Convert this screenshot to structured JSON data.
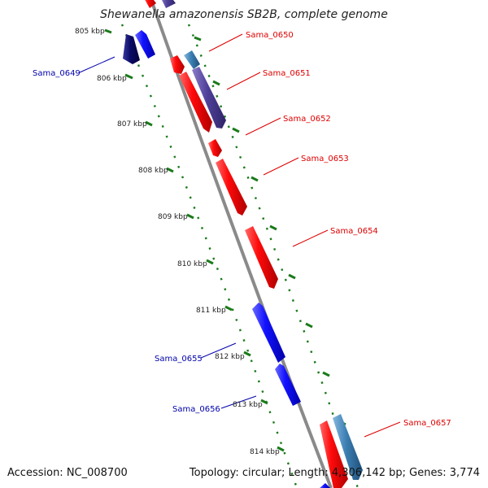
{
  "title": "Shewanella amazonensis SB2B, complete genome",
  "footer": {
    "accession": "Accession: NC_008700",
    "summary": "Topology: circular; Length: 4,306,142 bp; Genes: 3,774"
  },
  "colors": {
    "backbone": "#8a8a8a",
    "tick": "#1a7a1a",
    "forward_label": "#dd0000",
    "reverse_label": "#0000aa",
    "red_gene": "#ff0a0a",
    "blue_gene": "#1212ff",
    "purple_gene": "#4f3f9a",
    "navy_gene": "#0a0a66",
    "steel_gene": "#3c7fb3"
  },
  "scale_labels": [
    "805 kbp",
    "806 kbp",
    "807 kbp",
    "808 kbp",
    "809 kbp",
    "810 kbp",
    "811 kbp",
    "812 kbp",
    "813 kbp",
    "814 kbp"
  ],
  "gene_labels": {
    "forward": [
      "Sama_0650",
      "Sama_0651",
      "Sama_0652",
      "Sama_0653",
      "Sama_0654",
      "Sama_0657"
    ],
    "reverse": [
      "Sama_0649",
      "Sama_0655",
      "Sama_0656"
    ]
  }
}
